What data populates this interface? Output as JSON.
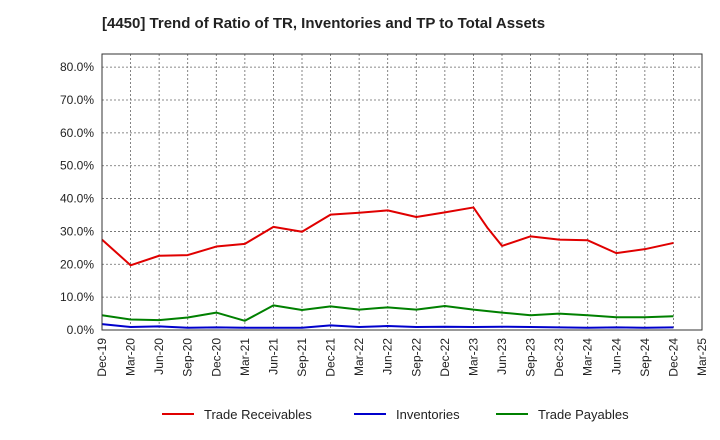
{
  "chart_data": {
    "type": "line",
    "title": "[4450]  Trend of Ratio of TR, Inventories and TP to Total Assets",
    "xlabel": "",
    "ylabel": "",
    "ylim": [
      0,
      0.84
    ],
    "y_ticks": [
      0.0,
      0.1,
      0.2,
      0.3,
      0.4,
      0.5,
      0.6,
      0.7,
      0.8
    ],
    "y_tick_labels": [
      "0.0%",
      "10.0%",
      "20.0%",
      "30.0%",
      "40.0%",
      "50.0%",
      "60.0%",
      "70.0%",
      "80.0%"
    ],
    "x_tick_labels": [
      "Dec-19",
      "Mar-20",
      "Jun-20",
      "Sep-20",
      "Dec-20",
      "Mar-21",
      "Jun-21",
      "Sep-21",
      "Dec-21",
      "Mar-22",
      "Jun-22",
      "Sep-22",
      "Dec-22",
      "Mar-23",
      "Jun-23",
      "Sep-23",
      "Dec-23",
      "Mar-24",
      "Jun-24",
      "Sep-24",
      "Dec-24",
      "Mar-25"
    ],
    "grid": true,
    "legend": "bottom",
    "series": [
      {
        "name": "Trade Receivables",
        "color": "#e00000",
        "points": [
          [
            0,
            0.275
          ],
          [
            1,
            0.197
          ],
          [
            2,
            0.226
          ],
          [
            3,
            0.228
          ],
          [
            4,
            0.254
          ],
          [
            5,
            0.262
          ],
          [
            6,
            0.314
          ],
          [
            7,
            0.299
          ],
          [
            8,
            0.351
          ],
          [
            9,
            0.357
          ],
          [
            10,
            0.364
          ],
          [
            11,
            0.344
          ],
          [
            12,
            0.358
          ],
          [
            13,
            0.373
          ],
          [
            13.5,
            0.31
          ],
          [
            14,
            0.256
          ],
          [
            15,
            0.285
          ],
          [
            16,
            0.275
          ],
          [
            17,
            0.273
          ],
          [
            18,
            0.234
          ],
          [
            19,
            0.246
          ],
          [
            20,
            0.265
          ]
        ]
      },
      {
        "name": "Inventories",
        "color": "#0000cc",
        "points": [
          [
            0,
            0.018
          ],
          [
            1,
            0.009
          ],
          [
            2,
            0.011
          ],
          [
            3,
            0.007
          ],
          [
            4,
            0.008
          ],
          [
            5,
            0.007
          ],
          [
            6,
            0.007
          ],
          [
            7,
            0.007
          ],
          [
            8,
            0.014
          ],
          [
            9,
            0.009
          ],
          [
            10,
            0.012
          ],
          [
            11,
            0.009
          ],
          [
            12,
            0.01
          ],
          [
            13,
            0.009
          ],
          [
            14,
            0.01
          ],
          [
            15,
            0.009
          ],
          [
            16,
            0.008
          ],
          [
            17,
            0.007
          ],
          [
            18,
            0.008
          ],
          [
            19,
            0.007
          ],
          [
            20,
            0.008
          ]
        ]
      },
      {
        "name": "Trade Payables",
        "color": "#008000",
        "points": [
          [
            0,
            0.045
          ],
          [
            1,
            0.032
          ],
          [
            2,
            0.03
          ],
          [
            3,
            0.038
          ],
          [
            4,
            0.053
          ],
          [
            5,
            0.028
          ],
          [
            6,
            0.075
          ],
          [
            7,
            0.061
          ],
          [
            8,
            0.072
          ],
          [
            9,
            0.062
          ],
          [
            10,
            0.069
          ],
          [
            11,
            0.062
          ],
          [
            12,
            0.073
          ],
          [
            13,
            0.062
          ],
          [
            14,
            0.053
          ],
          [
            15,
            0.045
          ],
          [
            16,
            0.05
          ],
          [
            17,
            0.045
          ],
          [
            18,
            0.039
          ],
          [
            19,
            0.039
          ],
          [
            20,
            0.042
          ]
        ]
      }
    ]
  }
}
